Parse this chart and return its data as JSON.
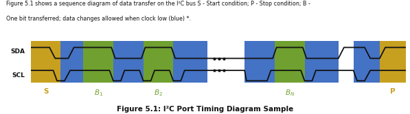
{
  "title_text": "Figure 5.1: I²C Port Timing Diagram Sample",
  "caption_line1": "Figure 5.1 shows a sequence diagram of data transfer on the I²C bus S - Start condition; P - Stop condition; B -",
  "caption_line2": "One bit transferred; data changes allowed when clock low (blue) *.",
  "sda_label": "SDA",
  "scl_label": "SCL",
  "color_gold": "#C8A020",
  "color_blue": "#4472C4",
  "color_green": "#70A030",
  "color_black": "#111111",
  "color_bg": "#FFFFFF",
  "fig_width": 5.97,
  "fig_height": 1.67,
  "dpi": 100
}
